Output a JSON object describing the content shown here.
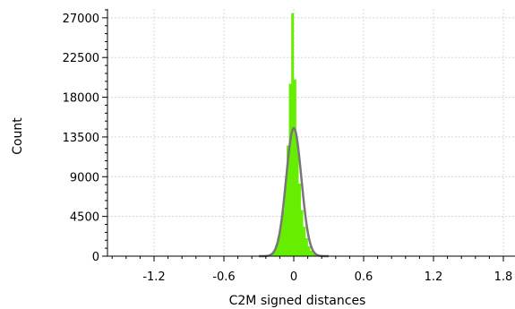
{
  "chart_data": {
    "type": "histogram",
    "title": "",
    "xlabel": "C2M signed distances",
    "ylabel": "Count",
    "xlim": [
      -1.6,
      1.9
    ],
    "ylim": [
      0,
      28000
    ],
    "x_ticks": [
      -1.2,
      -0.6,
      0,
      0.6,
      1.2,
      1.8
    ],
    "x_tick_labels": [
      "-1.2",
      "-0.6",
      "0",
      "0.6",
      "1.2",
      "1.8"
    ],
    "y_ticks": [
      0,
      4500,
      9000,
      13500,
      18000,
      22500,
      27000
    ],
    "y_tick_labels": [
      "0",
      "4500",
      "9000",
      "13500",
      "18000",
      "22500",
      "27000"
    ],
    "grid": true,
    "series": [
      {
        "kind": "histogram",
        "color": "#66ee00",
        "x": [
          -0.19,
          -0.17,
          -0.15,
          -0.13,
          -0.11,
          -0.09,
          -0.07,
          -0.05,
          -0.03,
          -0.01,
          0.01,
          0.03,
          0.05,
          0.07,
          0.09,
          0.11,
          0.13,
          0.15,
          0.17,
          0.19,
          0.21
        ],
        "values": [
          300,
          600,
          1200,
          2100,
          3400,
          5200,
          8000,
          12500,
          19500,
          27500,
          20000,
          13000,
          8200,
          5200,
          3300,
          2000,
          1100,
          600,
          300,
          150,
          60
        ]
      },
      {
        "kind": "fit-curve",
        "color": "#777777",
        "mean": 0.0,
        "std": 0.0658,
        "peak": 14500,
        "x_range": [
          -0.3,
          0.3
        ]
      }
    ]
  }
}
